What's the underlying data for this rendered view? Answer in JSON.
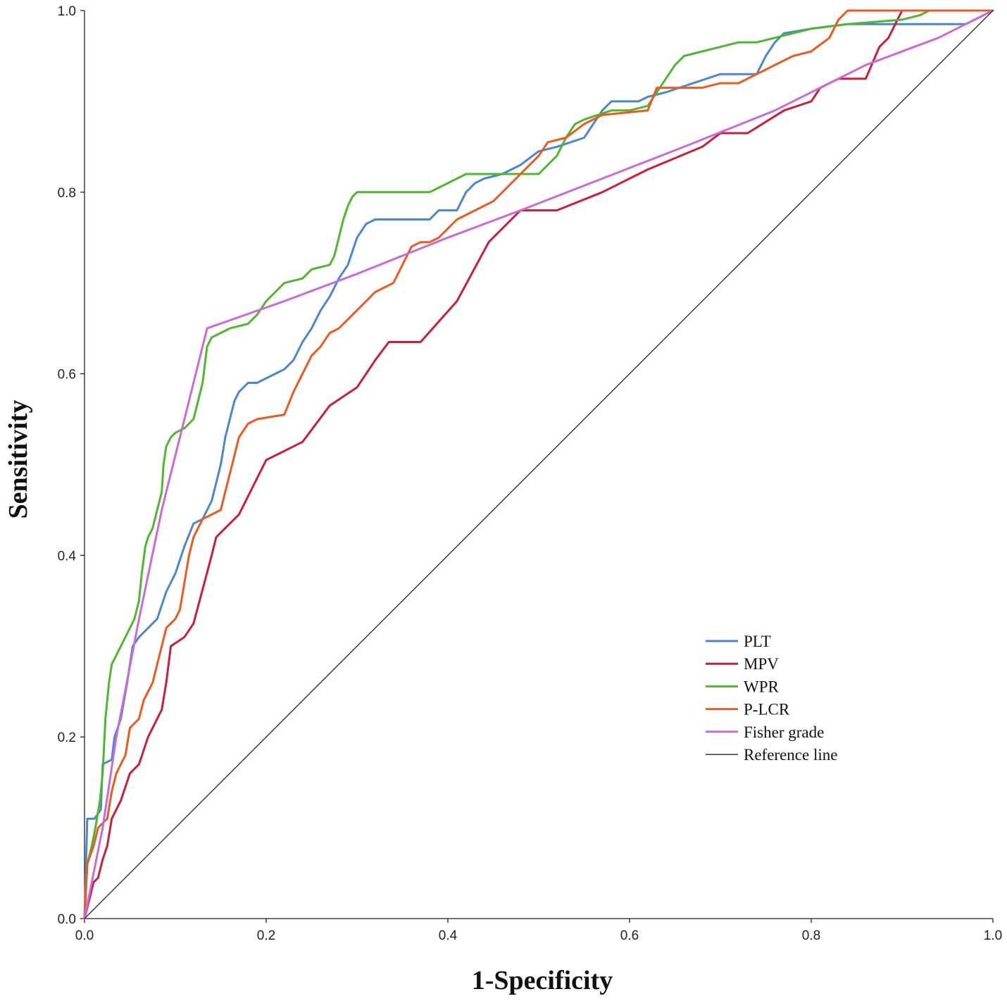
{
  "chart_data": {
    "type": "line",
    "title": "",
    "xlabel": "1-Specificity",
    "ylabel": "Sensitivity",
    "xlim": [
      0,
      1
    ],
    "ylim": [
      0,
      1
    ],
    "xticks": [
      "0.0",
      "0.2",
      "0.4",
      "0.6",
      "0.8",
      "1.0"
    ],
    "yticks": [
      "0.0",
      "0.2",
      "0.4",
      "0.6",
      "0.8",
      "1.0"
    ],
    "grid": false,
    "legend_position": "bottom-right",
    "series": [
      {
        "name": "PLT",
        "color": "#4a86d4",
        "points": [
          [
            0,
            0
          ],
          [
            0.003,
            0.11
          ],
          [
            0.011,
            0.11
          ],
          [
            0.018,
            0.12
          ],
          [
            0.02,
            0.17
          ],
          [
            0.03,
            0.175
          ],
          [
            0.033,
            0.2
          ],
          [
            0.04,
            0.22
          ],
          [
            0.047,
            0.26
          ],
          [
            0.05,
            0.28
          ],
          [
            0.053,
            0.3
          ],
          [
            0.06,
            0.31
          ],
          [
            0.07,
            0.32
          ],
          [
            0.08,
            0.33
          ],
          [
            0.09,
            0.36
          ],
          [
            0.1,
            0.38
          ],
          [
            0.11,
            0.41
          ],
          [
            0.12,
            0.435
          ],
          [
            0.13,
            0.44
          ],
          [
            0.14,
            0.46
          ],
          [
            0.15,
            0.5
          ],
          [
            0.155,
            0.53
          ],
          [
            0.16,
            0.55
          ],
          [
            0.165,
            0.57
          ],
          [
            0.17,
            0.58
          ],
          [
            0.18,
            0.59
          ],
          [
            0.19,
            0.59
          ],
          [
            0.2,
            0.595
          ],
          [
            0.21,
            0.6
          ],
          [
            0.22,
            0.605
          ],
          [
            0.23,
            0.615
          ],
          [
            0.24,
            0.635
          ],
          [
            0.25,
            0.65
          ],
          [
            0.26,
            0.67
          ],
          [
            0.27,
            0.685
          ],
          [
            0.28,
            0.705
          ],
          [
            0.29,
            0.72
          ],
          [
            0.3,
            0.75
          ],
          [
            0.31,
            0.765
          ],
          [
            0.32,
            0.77
          ],
          [
            0.34,
            0.77
          ],
          [
            0.38,
            0.77
          ],
          [
            0.39,
            0.78
          ],
          [
            0.41,
            0.78
          ],
          [
            0.42,
            0.8
          ],
          [
            0.43,
            0.81
          ],
          [
            0.44,
            0.815
          ],
          [
            0.46,
            0.82
          ],
          [
            0.48,
            0.83
          ],
          [
            0.5,
            0.845
          ],
          [
            0.52,
            0.85
          ],
          [
            0.55,
            0.86
          ],
          [
            0.57,
            0.89
          ],
          [
            0.58,
            0.9
          ],
          [
            0.61,
            0.9
          ],
          [
            0.62,
            0.905
          ],
          [
            0.64,
            0.91
          ],
          [
            0.67,
            0.92
          ],
          [
            0.7,
            0.93
          ],
          [
            0.74,
            0.93
          ],
          [
            0.75,
            0.95
          ],
          [
            0.76,
            0.965
          ],
          [
            0.77,
            0.975
          ],
          [
            0.8,
            0.98
          ],
          [
            0.84,
            0.985
          ],
          [
            0.97,
            0.985
          ],
          [
            0.98,
            0.99
          ],
          [
            0.99,
            0.995
          ],
          [
            1,
            1
          ]
        ]
      },
      {
        "name": "MPV",
        "color": "#cc1e3c",
        "points": [
          [
            0,
            0
          ],
          [
            0.005,
            0.02
          ],
          [
            0.01,
            0.04
          ],
          [
            0.015,
            0.045
          ],
          [
            0.02,
            0.065
          ],
          [
            0.025,
            0.08
          ],
          [
            0.03,
            0.11
          ],
          [
            0.04,
            0.13
          ],
          [
            0.05,
            0.16
          ],
          [
            0.06,
            0.17
          ],
          [
            0.07,
            0.2
          ],
          [
            0.08,
            0.22
          ],
          [
            0.085,
            0.23
          ],
          [
            0.09,
            0.26
          ],
          [
            0.095,
            0.3
          ],
          [
            0.11,
            0.31
          ],
          [
            0.12,
            0.325
          ],
          [
            0.14,
            0.4
          ],
          [
            0.145,
            0.42
          ],
          [
            0.17,
            0.445
          ],
          [
            0.2,
            0.505
          ],
          [
            0.24,
            0.525
          ],
          [
            0.27,
            0.565
          ],
          [
            0.3,
            0.585
          ],
          [
            0.32,
            0.615
          ],
          [
            0.335,
            0.635
          ],
          [
            0.37,
            0.635
          ],
          [
            0.41,
            0.68
          ],
          [
            0.445,
            0.745
          ],
          [
            0.48,
            0.78
          ],
          [
            0.52,
            0.78
          ],
          [
            0.57,
            0.8
          ],
          [
            0.62,
            0.825
          ],
          [
            0.68,
            0.85
          ],
          [
            0.7,
            0.865
          ],
          [
            0.73,
            0.865
          ],
          [
            0.77,
            0.89
          ],
          [
            0.8,
            0.9
          ],
          [
            0.81,
            0.915
          ],
          [
            0.83,
            0.925
          ],
          [
            0.86,
            0.925
          ],
          [
            0.875,
            0.96
          ],
          [
            0.885,
            0.97
          ],
          [
            0.895,
            0.99
          ],
          [
            0.9,
            1
          ],
          [
            1,
            1
          ]
        ]
      },
      {
        "name": "WPR",
        "color": "#4db82e",
        "points": [
          [
            0,
            0
          ],
          [
            0.003,
            0.06
          ],
          [
            0.008,
            0.08
          ],
          [
            0.012,
            0.1
          ],
          [
            0.017,
            0.13
          ],
          [
            0.02,
            0.16
          ],
          [
            0.023,
            0.22
          ],
          [
            0.027,
            0.26
          ],
          [
            0.03,
            0.28
          ],
          [
            0.035,
            0.29
          ],
          [
            0.04,
            0.3
          ],
          [
            0.045,
            0.31
          ],
          [
            0.05,
            0.32
          ],
          [
            0.055,
            0.33
          ],
          [
            0.06,
            0.35
          ],
          [
            0.063,
            0.38
          ],
          [
            0.067,
            0.41
          ],
          [
            0.07,
            0.42
          ],
          [
            0.075,
            0.43
          ],
          [
            0.08,
            0.45
          ],
          [
            0.085,
            0.47
          ],
          [
            0.087,
            0.5
          ],
          [
            0.09,
            0.52
          ],
          [
            0.095,
            0.53
          ],
          [
            0.1,
            0.535
          ],
          [
            0.11,
            0.54
          ],
          [
            0.12,
            0.55
          ],
          [
            0.125,
            0.57
          ],
          [
            0.13,
            0.59
          ],
          [
            0.135,
            0.63
          ],
          [
            0.14,
            0.64
          ],
          [
            0.15,
            0.645
          ],
          [
            0.16,
            0.65
          ],
          [
            0.18,
            0.655
          ],
          [
            0.19,
            0.665
          ],
          [
            0.2,
            0.68
          ],
          [
            0.21,
            0.69
          ],
          [
            0.22,
            0.7
          ],
          [
            0.24,
            0.705
          ],
          [
            0.25,
            0.715
          ],
          [
            0.27,
            0.72
          ],
          [
            0.275,
            0.73
          ],
          [
            0.28,
            0.75
          ],
          [
            0.285,
            0.77
          ],
          [
            0.29,
            0.785
          ],
          [
            0.295,
            0.795
          ],
          [
            0.3,
            0.8
          ],
          [
            0.38,
            0.8
          ],
          [
            0.39,
            0.805
          ],
          [
            0.41,
            0.815
          ],
          [
            0.42,
            0.82
          ],
          [
            0.5,
            0.82
          ],
          [
            0.52,
            0.84
          ],
          [
            0.53,
            0.86
          ],
          [
            0.54,
            0.875
          ],
          [
            0.55,
            0.88
          ],
          [
            0.58,
            0.89
          ],
          [
            0.6,
            0.89
          ],
          [
            0.62,
            0.895
          ],
          [
            0.63,
            0.91
          ],
          [
            0.64,
            0.925
          ],
          [
            0.65,
            0.94
          ],
          [
            0.66,
            0.95
          ],
          [
            0.68,
            0.955
          ],
          [
            0.7,
            0.96
          ],
          [
            0.72,
            0.965
          ],
          [
            0.74,
            0.965
          ],
          [
            0.76,
            0.97
          ],
          [
            0.78,
            0.975
          ],
          [
            0.8,
            0.98
          ],
          [
            0.84,
            0.985
          ],
          [
            0.9,
            0.99
          ],
          [
            0.92,
            0.995
          ],
          [
            0.93,
            1
          ],
          [
            1,
            1
          ]
        ]
      },
      {
        "name": "P-LCR",
        "color": "#ee5a1e",
        "points": [
          [
            0,
            0
          ],
          [
            0.003,
            0.06
          ],
          [
            0.01,
            0.08
          ],
          [
            0.015,
            0.1
          ],
          [
            0.025,
            0.11
          ],
          [
            0.03,
            0.14
          ],
          [
            0.035,
            0.16
          ],
          [
            0.045,
            0.18
          ],
          [
            0.05,
            0.21
          ],
          [
            0.06,
            0.22
          ],
          [
            0.065,
            0.24
          ],
          [
            0.075,
            0.26
          ],
          [
            0.08,
            0.28
          ],
          [
            0.085,
            0.3
          ],
          [
            0.09,
            0.32
          ],
          [
            0.1,
            0.33
          ],
          [
            0.105,
            0.34
          ],
          [
            0.11,
            0.37
          ],
          [
            0.115,
            0.4
          ],
          [
            0.12,
            0.42
          ],
          [
            0.13,
            0.44
          ],
          [
            0.14,
            0.445
          ],
          [
            0.15,
            0.45
          ],
          [
            0.155,
            0.47
          ],
          [
            0.16,
            0.49
          ],
          [
            0.165,
            0.51
          ],
          [
            0.17,
            0.53
          ],
          [
            0.18,
            0.545
          ],
          [
            0.19,
            0.55
          ],
          [
            0.22,
            0.555
          ],
          [
            0.23,
            0.58
          ],
          [
            0.24,
            0.6
          ],
          [
            0.25,
            0.62
          ],
          [
            0.26,
            0.63
          ],
          [
            0.27,
            0.645
          ],
          [
            0.28,
            0.65
          ],
          [
            0.29,
            0.66
          ],
          [
            0.3,
            0.67
          ],
          [
            0.31,
            0.68
          ],
          [
            0.32,
            0.69
          ],
          [
            0.34,
            0.7
          ],
          [
            0.35,
            0.72
          ],
          [
            0.36,
            0.74
          ],
          [
            0.37,
            0.745
          ],
          [
            0.38,
            0.745
          ],
          [
            0.39,
            0.75
          ],
          [
            0.4,
            0.76
          ],
          [
            0.41,
            0.77
          ],
          [
            0.43,
            0.78
          ],
          [
            0.45,
            0.79
          ],
          [
            0.46,
            0.8
          ],
          [
            0.47,
            0.81
          ],
          [
            0.48,
            0.82
          ],
          [
            0.49,
            0.83
          ],
          [
            0.5,
            0.84
          ],
          [
            0.51,
            0.855
          ],
          [
            0.53,
            0.86
          ],
          [
            0.55,
            0.875
          ],
          [
            0.57,
            0.885
          ],
          [
            0.62,
            0.89
          ],
          [
            0.63,
            0.915
          ],
          [
            0.68,
            0.915
          ],
          [
            0.7,
            0.92
          ],
          [
            0.72,
            0.92
          ],
          [
            0.76,
            0.94
          ],
          [
            0.78,
            0.95
          ],
          [
            0.8,
            0.955
          ],
          [
            0.82,
            0.97
          ],
          [
            0.83,
            0.99
          ],
          [
            0.84,
            1
          ],
          [
            1,
            1
          ]
        ]
      },
      {
        "name": "Fisher grade",
        "color": "#c96ad8",
        "points": [
          [
            0,
            0
          ],
          [
            0.01,
            0.05
          ],
          [
            0.02,
            0.1
          ],
          [
            0.035,
            0.2
          ],
          [
            0.06,
            0.33
          ],
          [
            0.085,
            0.45
          ],
          [
            0.11,
            0.55
          ],
          [
            0.135,
            0.65
          ],
          [
            0.22,
            0.68
          ],
          [
            0.3,
            0.71
          ],
          [
            0.4,
            0.75
          ],
          [
            0.48,
            0.78
          ],
          [
            0.57,
            0.815
          ],
          [
            0.66,
            0.85
          ],
          [
            0.76,
            0.89
          ],
          [
            0.86,
            0.94
          ],
          [
            0.94,
            0.97
          ],
          [
            1,
            1
          ]
        ]
      },
      {
        "name": "Reference line",
        "color": "#333333",
        "points": [
          [
            0,
            0
          ],
          [
            1,
            1
          ]
        ]
      }
    ]
  }
}
